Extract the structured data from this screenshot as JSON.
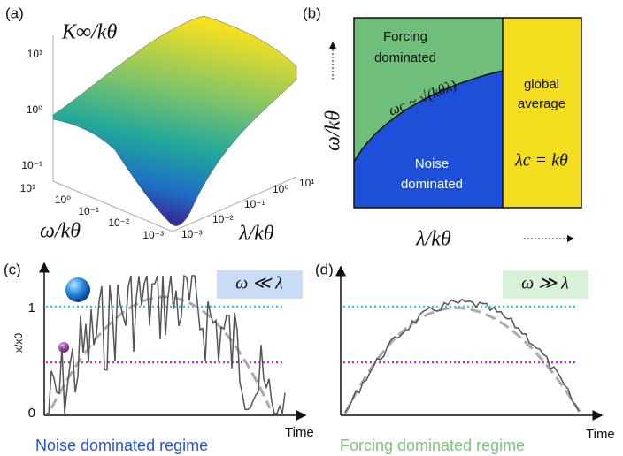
{
  "panel_a": {
    "label": "(a)",
    "title": "K∞/kθ",
    "z_ticks": [
      "10¹",
      "10⁰",
      "10⁻¹"
    ],
    "omega_ticks": [
      "10¹",
      "10⁰",
      "10⁻¹",
      "10⁻²",
      "10⁻³"
    ],
    "lambda_ticks": [
      "10⁻³",
      "10⁻²",
      "10⁻¹",
      "10⁰",
      "10¹"
    ],
    "omega_axis": "ω/kθ",
    "lambda_axis": "λ/kθ"
  },
  "panel_b": {
    "label": "(b)",
    "forcing": [
      "Forcing",
      "dominated"
    ],
    "global": [
      "global",
      "average"
    ],
    "noise": [
      "Noise",
      "dominated"
    ],
    "boundary": "ωc ~ √(kθλ)",
    "lambda_c": "λc = kθ",
    "y_axis": "ω/kθ",
    "x_axis": "λ/kθ"
  },
  "panel_c": {
    "label": "(c)",
    "badge": "ω ≪ λ",
    "y_axis": "x/x0",
    "y_ticks": [
      "0",
      "1"
    ],
    "x_axis": "Time",
    "caption": "Noise dominated regime"
  },
  "panel_d": {
    "label": "(d)",
    "badge": "ω ≫ λ",
    "x_axis": "Time",
    "caption": "Forcing dominated regime"
  }
}
